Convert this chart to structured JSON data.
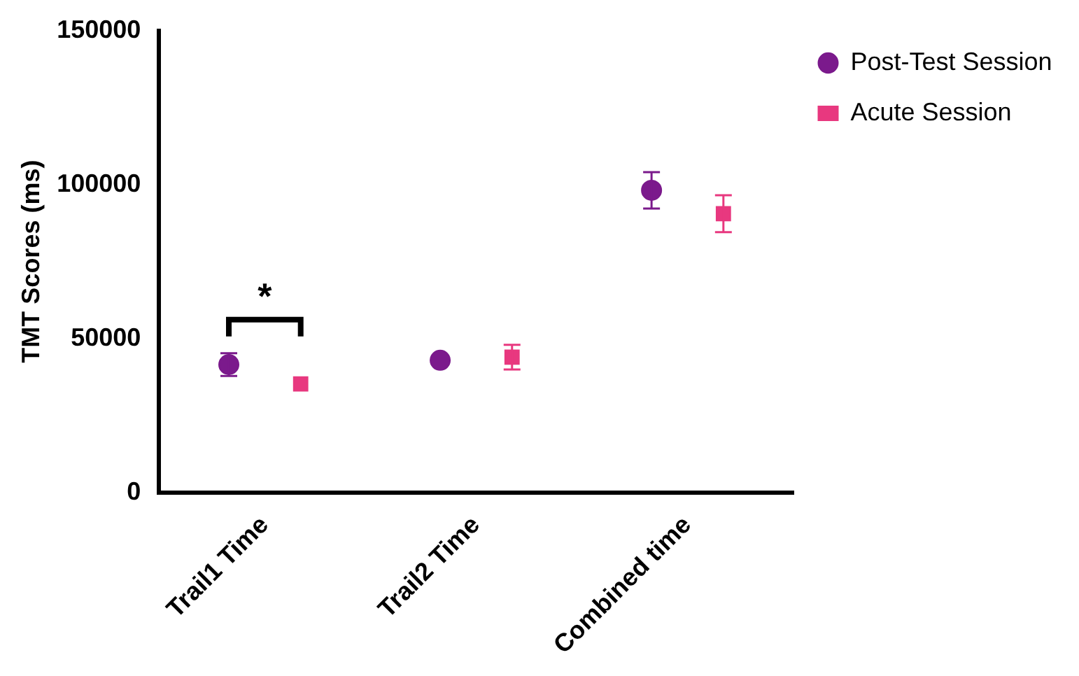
{
  "chart_data": {
    "type": "scatter",
    "ylabel": "TMT Scores (ms)",
    "categories": [
      "Trail1 Time",
      "Trail2 Time",
      "Combined time"
    ],
    "series": [
      {
        "name": "Post-Test Session",
        "color": "#7b1a8c",
        "marker": "circle",
        "values": [
          41500,
          42900,
          98100
        ],
        "errors": [
          3700,
          null,
          5900
        ]
      },
      {
        "name": "Acute Session",
        "color": "#e8387f",
        "marker": "square",
        "values": [
          35200,
          43900,
          90500
        ],
        "errors": [
          null,
          4000,
          6000
        ]
      }
    ],
    "ylim": [
      0,
      150000
    ],
    "yticks": [
      0,
      50000,
      100000,
      150000
    ],
    "grid": false,
    "legend": "top right",
    "annotations": [
      "*"
    ]
  }
}
